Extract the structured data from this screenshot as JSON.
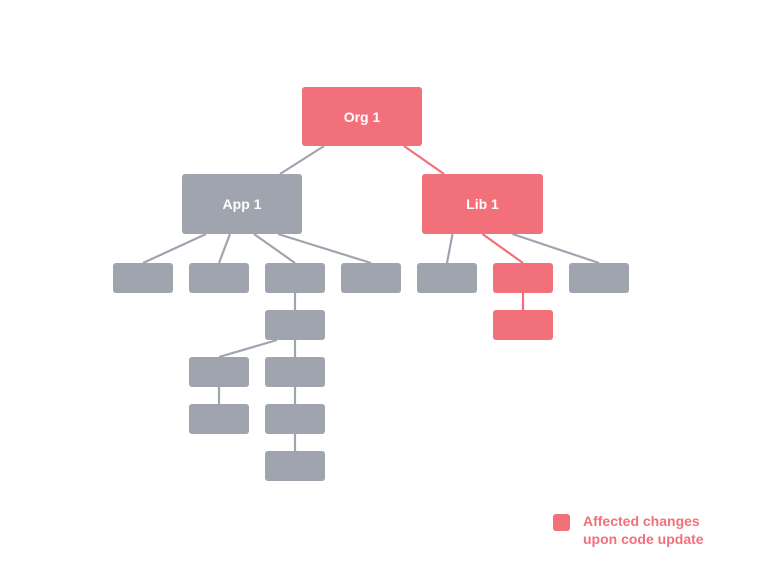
{
  "colors": {
    "default": "#a0a4ae",
    "affected": "#f2707a",
    "edge_default": "#a0a4ae",
    "edge_affected": "#f2707a"
  },
  "nodes": [
    {
      "id": "org1",
      "label": "Org 1",
      "affected": true
    },
    {
      "id": "app1",
      "label": "App 1",
      "affected": false
    },
    {
      "id": "lib1",
      "label": "Lib 1",
      "affected": true
    },
    {
      "id": "a1",
      "label": "",
      "affected": false
    },
    {
      "id": "a2",
      "label": "",
      "affected": false
    },
    {
      "id": "a3",
      "label": "",
      "affected": false
    },
    {
      "id": "a4",
      "label": "",
      "affected": false
    },
    {
      "id": "a3c",
      "label": "",
      "affected": false
    },
    {
      "id": "a3cl",
      "label": "",
      "affected": false
    },
    {
      "id": "a3clc",
      "label": "",
      "affected": false
    },
    {
      "id": "a3cc",
      "label": "",
      "affected": false
    },
    {
      "id": "a3ccc",
      "label": "",
      "affected": false
    },
    {
      "id": "a3cccc",
      "label": "",
      "affected": false
    },
    {
      "id": "l1",
      "label": "",
      "affected": false
    },
    {
      "id": "l2",
      "label": "",
      "affected": true
    },
    {
      "id": "l3",
      "label": "",
      "affected": false
    },
    {
      "id": "l2c",
      "label": "",
      "affected": true
    }
  ],
  "edges": [
    {
      "from": "org1",
      "to": "app1",
      "affected": false
    },
    {
      "from": "org1",
      "to": "lib1",
      "affected": true
    },
    {
      "from": "app1",
      "to": "a1",
      "affected": false
    },
    {
      "from": "app1",
      "to": "a2",
      "affected": false
    },
    {
      "from": "app1",
      "to": "a3",
      "affected": false
    },
    {
      "from": "app1",
      "to": "a4",
      "affected": false
    },
    {
      "from": "a3",
      "to": "a3c",
      "affected": false
    },
    {
      "from": "a3c",
      "to": "a3cl",
      "affected": false
    },
    {
      "from": "a3cl",
      "to": "a3clc",
      "affected": false
    },
    {
      "from": "a3c",
      "to": "a3cc",
      "affected": false
    },
    {
      "from": "a3cc",
      "to": "a3ccc",
      "affected": false
    },
    {
      "from": "a3ccc",
      "to": "a3cccc",
      "affected": false
    },
    {
      "from": "lib1",
      "to": "l1",
      "affected": false
    },
    {
      "from": "lib1",
      "to": "l2",
      "affected": true
    },
    {
      "from": "lib1",
      "to": "l3",
      "affected": false
    },
    {
      "from": "l2",
      "to": "l2c",
      "affected": true
    }
  ],
  "legend": {
    "line1": "Affected changes",
    "line2": "upon code update"
  }
}
